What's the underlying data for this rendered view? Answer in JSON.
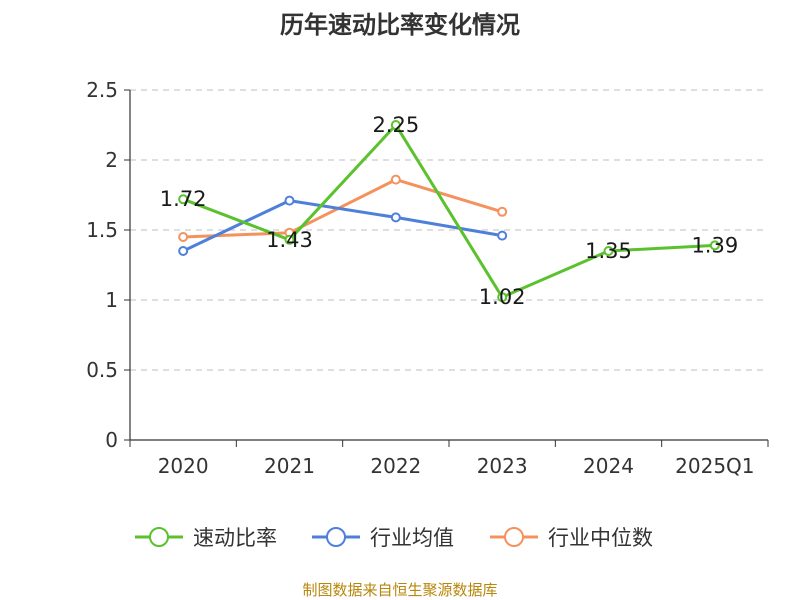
{
  "source_text": "制图数据来自恒生聚源数据库",
  "chart_data": {
    "type": "line",
    "title": "历年速动比率变化情况",
    "xlabel": "",
    "ylabel": "",
    "categories": [
      "2020",
      "2021",
      "2022",
      "2023",
      "2024",
      "2025Q1"
    ],
    "ylim": [
      0,
      2.5
    ],
    "yticks": [
      "0",
      "0.5",
      "1",
      "1.5",
      "2",
      "2.5"
    ],
    "grid": true,
    "legend_position": "bottom",
    "series": [
      {
        "name": "速动比率",
        "color": "#5bc12d",
        "values": [
          1.72,
          1.43,
          2.25,
          1.02,
          1.35,
          1.39
        ],
        "labels": [
          "1.72",
          "1.43",
          "2.25",
          "1.02",
          "1.35",
          "1.39"
        ]
      },
      {
        "name": "行业均值",
        "color": "#4e80d9",
        "values": [
          1.35,
          1.71,
          1.59,
          1.46,
          null,
          null
        ]
      },
      {
        "name": "行业中位数",
        "color": "#f4925d",
        "values": [
          1.45,
          1.48,
          1.86,
          1.63,
          null,
          null
        ]
      }
    ]
  }
}
